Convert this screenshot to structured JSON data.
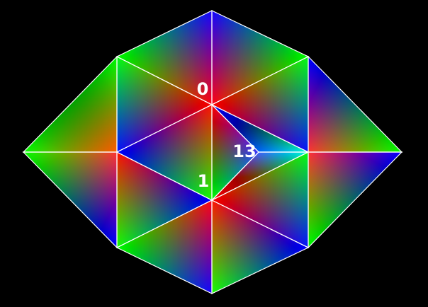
{
  "colors": {
    "background": "#000000",
    "edge": "#ffffff",
    "label": "#ffffff",
    "vertex_palette": [
      "#ff0000",
      "#00ff00",
      "#0000ff"
    ]
  },
  "labels": {
    "v0": "0",
    "v1": "1",
    "v13": "13"
  }
}
